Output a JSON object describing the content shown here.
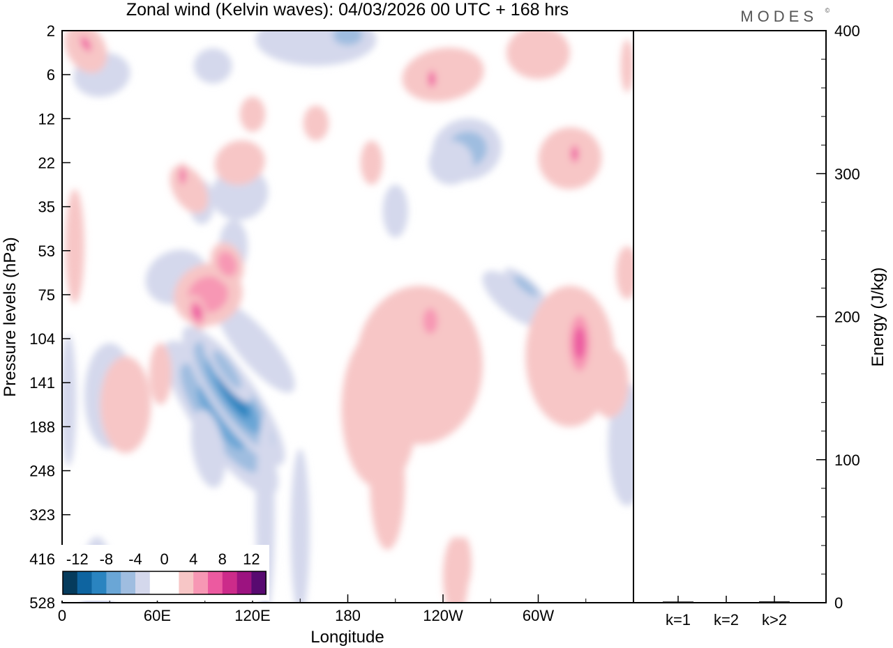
{
  "header": {
    "title": "Zonal wind (Kelvin waves):  04/03/2026  00 UTC  + 168 hrs",
    "brand": "MODES",
    "brand_mark": "©"
  },
  "chart_data": [
    {
      "type": "heatmap",
      "title": "Zonal wind (Kelvin waves):  04/03/2026  00 UTC  + 168 hrs",
      "xlabel": "Longitude",
      "ylabel": "Pressure levels (hPa)",
      "x_range_deg": [
        0,
        360
      ],
      "x_ticks": [
        {
          "deg": 0,
          "label": "0"
        },
        {
          "deg": 60,
          "label": "60E"
        },
        {
          "deg": 120,
          "label": "120E"
        },
        {
          "deg": 180,
          "label": "180"
        },
        {
          "deg": 240,
          "label": "120W"
        },
        {
          "deg": 300,
          "label": "60W"
        }
      ],
      "y_levels": [
        "2",
        "6",
        "12",
        "22",
        "35",
        "53",
        "75",
        "104",
        "141",
        "188",
        "248",
        "323",
        "416",
        "528"
      ],
      "colorbar": {
        "labels": [
          "-12",
          "-8",
          "-4",
          "0",
          "4",
          "8",
          "12"
        ],
        "colors": [
          "#053b5c",
          "#0e64a0",
          "#2a84c0",
          "#6aa6d6",
          "#9fbde0",
          "#d4d8ec",
          "#ffffff",
          "#ffffff",
          "#f7c6c6",
          "#f797b4",
          "#ec5aa0",
          "#cc2b8a",
          "#9c1380",
          "#580a70"
        ]
      },
      "blobs": [
        {
          "lon": 100,
          "lev": 8.8,
          "rx": 17,
          "ry": 2.1,
          "v": -6,
          "rot": -35
        },
        {
          "lon": 108,
          "lev": 8.3,
          "rx": 14,
          "ry": 1.9,
          "v": -7,
          "rot": -35
        },
        {
          "lon": 104,
          "lev": 7.7,
          "rx": 7,
          "ry": 0.9,
          "v": -4,
          "rot": -35
        },
        {
          "lon": 92,
          "lev": 9.5,
          "rx": 10,
          "ry": 0.9,
          "v": -2,
          "rot": -10
        },
        {
          "lon": 122,
          "lev": 7.2,
          "rx": 11,
          "ry": 1.3,
          "v": -2,
          "rot": -40
        },
        {
          "lon": 128,
          "lev": 11.0,
          "rx": 6,
          "ry": 2.3,
          "v": -2,
          "rot": 0
        },
        {
          "lon": 150,
          "lev": 11.4,
          "rx": 6,
          "ry": 1.9,
          "v": -2,
          "rot": 0
        },
        {
          "lon": 22,
          "lev": 12.6,
          "rx": 10,
          "ry": 1.1,
          "v": -2,
          "rot": 0
        },
        {
          "lon": 30,
          "lev": 8.3,
          "rx": 16,
          "ry": 1.2,
          "v": -1,
          "rot": 0
        },
        {
          "lon": 4,
          "lev": 8.4,
          "rx": 5,
          "ry": 1.5,
          "v": -1,
          "rot": 0
        },
        {
          "lon": 72,
          "lev": 5.6,
          "rx": 20,
          "ry": 0.6,
          "v": -1.5,
          "rot": -25
        },
        {
          "lon": 112,
          "lev": 3.7,
          "rx": 18,
          "ry": 0.6,
          "v": -2,
          "rot": -20
        },
        {
          "lon": 108,
          "lev": 4.9,
          "rx": 9,
          "ry": 0.6,
          "v": -1.5,
          "rot": 0
        },
        {
          "lon": 255,
          "lev": 2.7,
          "rx": 22,
          "ry": 0.7,
          "v": -3,
          "rot": -15
        },
        {
          "lon": 245,
          "lev": 3.0,
          "rx": 14,
          "ry": 0.5,
          "v": -2,
          "rot": -15
        },
        {
          "lon": 160,
          "lev": 0.2,
          "rx": 38,
          "ry": 0.6,
          "v": -2,
          "rot": 0
        },
        {
          "lon": 180,
          "lev": 0.1,
          "rx": 16,
          "ry": 0.4,
          "v": -3,
          "rot": 0
        },
        {
          "lon": 25,
          "lev": 1.0,
          "rx": 18,
          "ry": 0.5,
          "v": -2,
          "rot": -10
        },
        {
          "lon": 95,
          "lev": 0.8,
          "rx": 12,
          "ry": 0.4,
          "v": -1.5,
          "rot": 0
        },
        {
          "lon": 285,
          "lev": 6.1,
          "rx": 10,
          "ry": 0.9,
          "v": -2,
          "rot": -50
        },
        {
          "lon": 292,
          "lev": 5.8,
          "rx": 5,
          "ry": 0.6,
          "v": -2.5,
          "rot": -50
        },
        {
          "lon": 356,
          "lev": 9.4,
          "rx": 12,
          "ry": 1.4,
          "v": -1.5,
          "rot": 0
        },
        {
          "lon": 210,
          "lev": 4.1,
          "rx": 8,
          "ry": 0.6,
          "v": -1.5,
          "rot": 0
        },
        {
          "lon": 88,
          "lev": 3.9,
          "rx": 8,
          "ry": 0.5,
          "v": -1.5,
          "rot": 0
        },
        {
          "lon": 225,
          "lev": 7.6,
          "rx": 40,
          "ry": 1.8,
          "v": 2,
          "rot": 0
        },
        {
          "lon": 200,
          "lev": 8.6,
          "rx": 24,
          "ry": 1.8,
          "v": 2,
          "rot": 0
        },
        {
          "lon": 205,
          "lev": 10.3,
          "rx": 11,
          "ry": 1.5,
          "v": 1.5,
          "rot": 0
        },
        {
          "lon": 248,
          "lev": 12.4,
          "rx": 8,
          "ry": 0.9,
          "v": 1.5,
          "rot": 0
        },
        {
          "lon": 232,
          "lev": 6.6,
          "rx": 8,
          "ry": 0.5,
          "v": 4,
          "rot": 0
        },
        {
          "lon": 320,
          "lev": 7.4,
          "rx": 28,
          "ry": 1.6,
          "v": 2,
          "rot": 0
        },
        {
          "lon": 326,
          "lev": 7.1,
          "rx": 9,
          "ry": 0.9,
          "v": 5,
          "rot": 0
        },
        {
          "lon": 345,
          "lev": 8.0,
          "rx": 12,
          "ry": 0.8,
          "v": 1.5,
          "rot": 0
        },
        {
          "lon": 356,
          "lev": 5.5,
          "rx": 7,
          "ry": 0.6,
          "v": 1.5,
          "rot": 0
        },
        {
          "lon": 40,
          "lev": 8.5,
          "rx": 16,
          "ry": 1.1,
          "v": 1.5,
          "rot": 0
        },
        {
          "lon": 62,
          "lev": 7.8,
          "rx": 7,
          "ry": 0.7,
          "v": 1.5,
          "rot": 0
        },
        {
          "lon": 92,
          "lev": 6.0,
          "rx": 22,
          "ry": 0.7,
          "v": 2.5,
          "rot": -22
        },
        {
          "lon": 85,
          "lev": 6.4,
          "rx": 6,
          "ry": 0.4,
          "v": 5,
          "rot": -15
        },
        {
          "lon": 104,
          "lev": 5.3,
          "rx": 10,
          "ry": 0.5,
          "v": 4,
          "rot": -20
        },
        {
          "lon": 8,
          "lev": 4.9,
          "rx": 6,
          "ry": 1.3,
          "v": 1.5,
          "rot": 0
        },
        {
          "lon": 80,
          "lev": 3.6,
          "rx": 10,
          "ry": 0.6,
          "v": 2,
          "rot": -30
        },
        {
          "lon": 76,
          "lev": 3.3,
          "rx": 3,
          "ry": 0.3,
          "v": 5,
          "rot": 0
        },
        {
          "lon": 112,
          "lev": 3.0,
          "rx": 16,
          "ry": 0.5,
          "v": 2,
          "rot": -18
        },
        {
          "lon": 195,
          "lev": 3.0,
          "rx": 7,
          "ry": 0.5,
          "v": 1.5,
          "rot": 0
        },
        {
          "lon": 320,
          "lev": 2.9,
          "rx": 20,
          "ry": 0.7,
          "v": 2,
          "rot": -20
        },
        {
          "lon": 323,
          "lev": 2.8,
          "rx": 4,
          "ry": 0.3,
          "v": 5,
          "rot": 0
        },
        {
          "lon": 240,
          "lev": 1.0,
          "rx": 26,
          "ry": 0.6,
          "v": 2,
          "rot": -10
        },
        {
          "lon": 233,
          "lev": 1.1,
          "rx": 4,
          "ry": 0.3,
          "v": 5,
          "rot": 0
        },
        {
          "lon": 300,
          "lev": 0.5,
          "rx": 20,
          "ry": 0.6,
          "v": 2,
          "rot": 0
        },
        {
          "lon": 15,
          "lev": 0.4,
          "rx": 12,
          "ry": 0.6,
          "v": 2,
          "rot": -30
        },
        {
          "lon": 15,
          "lev": 0.3,
          "rx": 4,
          "ry": 0.3,
          "v": 5,
          "rot": -30
        },
        {
          "lon": 253,
          "lev": 12.1,
          "rx": 5,
          "ry": 0.6,
          "v": 1.5,
          "rot": 0
        },
        {
          "lon": 356,
          "lev": 0.8,
          "rx": 4,
          "ry": 0.6,
          "v": 1.5,
          "rot": 0
        },
        {
          "lon": 120,
          "lev": 1.9,
          "rx": 8,
          "ry": 0.4,
          "v": 1.5,
          "rot": 0
        },
        {
          "lon": 160,
          "lev": 2.1,
          "rx": 8,
          "ry": 0.4,
          "v": 1.5,
          "rot": 0
        }
      ]
    },
    {
      "type": "bar",
      "categories": [
        "k=1",
        "k=2",
        "k>2"
      ],
      "values": [
        0.8,
        0.4,
        0.9
      ],
      "ylabel": "Energy (J/kg)",
      "ylim": [
        0,
        400
      ],
      "y_ticks": [
        "0",
        "100",
        "200",
        "300",
        "400"
      ]
    }
  ]
}
